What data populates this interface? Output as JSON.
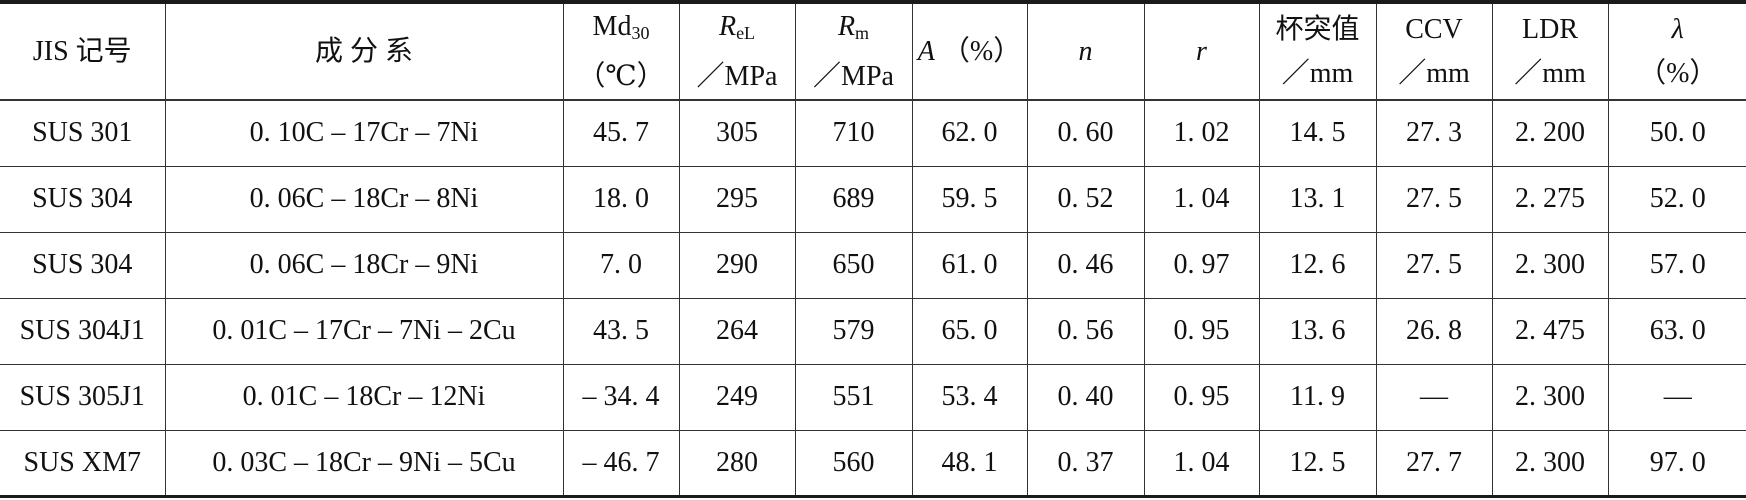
{
  "table": {
    "headers": [
      {
        "line1": "JIS 记号",
        "line2": ""
      },
      {
        "line1": "成 分 系",
        "line2": ""
      },
      {
        "main": "Md",
        "sub": "30",
        "line2": "（℃）"
      },
      {
        "main": "R",
        "sub": "eL",
        "line2": "／MPa"
      },
      {
        "main": "R",
        "sub": "m",
        "line2": "／MPa"
      },
      {
        "line1": "A （%）",
        "italic": "A",
        "rest": " （%）"
      },
      {
        "line1": "n"
      },
      {
        "line1": "r"
      },
      {
        "line1": "杯突值",
        "line2": "／mm"
      },
      {
        "line1": "CCV",
        "line2": "／mm"
      },
      {
        "line1": "LDR",
        "line2": "／mm"
      },
      {
        "line1": "λ",
        "line2": "（%）"
      }
    ],
    "rows": [
      [
        "SUS 301",
        "0. 10C – 17Cr – 7Ni",
        "45. 7",
        "305",
        "710",
        "62. 0",
        "0. 60",
        "1. 02",
        "14. 5",
        "27. 3",
        "2. 200",
        "50. 0"
      ],
      [
        "SUS 304",
        "0. 06C – 18Cr – 8Ni",
        "18. 0",
        "295",
        "689",
        "59. 5",
        "0. 52",
        "1. 04",
        "13. 1",
        "27. 5",
        "2. 275",
        "52. 0"
      ],
      [
        "SUS 304",
        "0. 06C – 18Cr – 9Ni",
        "7. 0",
        "290",
        "650",
        "61. 0",
        "0. 46",
        "0. 97",
        "12. 6",
        "27. 5",
        "2. 300",
        "57. 0"
      ],
      [
        "SUS 304J1",
        "0. 01C – 17Cr – 7Ni – 2Cu",
        "43. 5",
        "264",
        "579",
        "65. 0",
        "0. 56",
        "0. 95",
        "13. 6",
        "26. 8",
        "2. 475",
        "63. 0"
      ],
      [
        "SUS 305J1",
        "0. 01C – 18Cr – 12Ni",
        "– 34. 4",
        "249",
        "551",
        "53. 4",
        "0. 40",
        "0. 95",
        "11. 9",
        "—",
        "2. 300",
        "—"
      ],
      [
        "SUS XM7",
        "0. 03C – 18Cr – 9Ni – 5Cu",
        "– 46. 7",
        "280",
        "560",
        "48. 1",
        "0. 37",
        "1. 04",
        "12. 5",
        "27. 7",
        "2. 300",
        "97. 0"
      ]
    ]
  }
}
